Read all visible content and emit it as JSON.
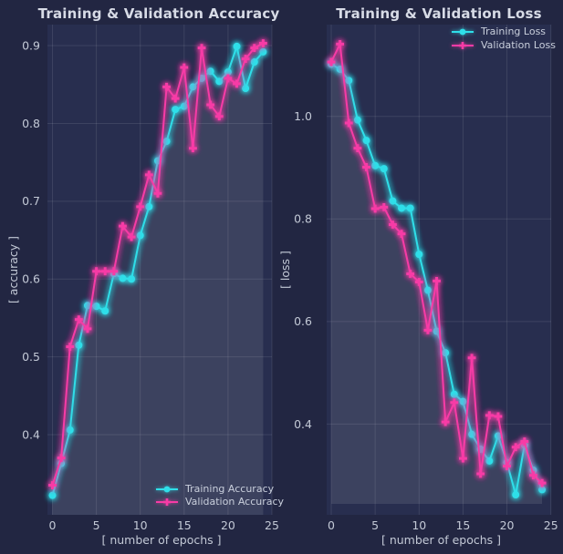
{
  "figure": {
    "background": "#222642",
    "plot_background": "#282e4f",
    "grid_color": "rgba(255,255,255,0.10)",
    "area_fill_color": "#ffffff",
    "area_fill_opacity": 0.05,
    "title_color": "#d7dbe6",
    "tick_color": "#c3c9d6"
  },
  "colors": {
    "training": "#2fdfe9",
    "validation": "#f73ba6"
  },
  "chart_data": [
    {
      "id": "accuracy",
      "type": "line",
      "title": "Training & Validation Accuracy",
      "xlabel": "[ number of epochs ]",
      "ylabel": "[ accuracy ]",
      "x": [
        0,
        1,
        2,
        3,
        4,
        5,
        6,
        7,
        8,
        9,
        10,
        11,
        12,
        13,
        14,
        15,
        16,
        17,
        18,
        19,
        20,
        21,
        22,
        23,
        24
      ],
      "series": [
        {
          "name": "Training Accuracy",
          "color": "#2fdfe9",
          "marker": "circle",
          "values": [
            0.322,
            0.363,
            0.406,
            0.515,
            0.566,
            0.565,
            0.559,
            0.607,
            0.601,
            0.6,
            0.656,
            0.693,
            0.752,
            0.777,
            0.818,
            0.822,
            0.847,
            0.858,
            0.867,
            0.854,
            0.866,
            0.899,
            0.845,
            0.879,
            0.892
          ]
        },
        {
          "name": "Validation Accuracy",
          "color": "#f73ba6",
          "marker": "plus",
          "values": [
            0.335,
            0.37,
            0.513,
            0.548,
            0.536,
            0.61,
            0.61,
            0.61,
            0.668,
            0.654,
            0.693,
            0.734,
            0.71,
            0.847,
            0.832,
            0.872,
            0.768,
            0.897,
            0.824,
            0.809,
            0.858,
            0.851,
            0.883,
            0.897,
            0.903
          ]
        }
      ],
      "xticks": [
        0,
        5,
        10,
        15,
        20,
        25
      ],
      "yticks": [
        0.4,
        0.5,
        0.6,
        0.7,
        0.8,
        0.9
      ],
      "xlim": [
        -0.57,
        25.0
      ],
      "ylim": [
        0.297,
        0.927
      ],
      "grid": true,
      "legend_position": "lower right"
    },
    {
      "id": "loss",
      "type": "line",
      "title": "Training & Validation Loss",
      "xlabel": "[ number of epochs ]",
      "ylabel": "[ loss ]",
      "x": [
        0,
        1,
        2,
        3,
        4,
        5,
        6,
        7,
        8,
        9,
        10,
        11,
        12,
        13,
        14,
        15,
        16,
        17,
        18,
        19,
        20,
        21,
        22,
        23,
        24
      ],
      "series": [
        {
          "name": "Training Loss",
          "color": "#2fdfe9",
          "marker": "circle",
          "values": [
            1.102,
            1.092,
            1.07,
            0.993,
            0.953,
            0.904,
            0.898,
            0.835,
            0.821,
            0.821,
            0.731,
            0.661,
            0.581,
            0.539,
            0.458,
            0.444,
            0.38,
            0.351,
            0.328,
            0.377,
            0.325,
            0.262,
            0.359,
            0.31,
            0.272
          ]
        },
        {
          "name": "Validation Loss",
          "color": "#f73ba6",
          "marker": "plus",
          "values": [
            1.106,
            1.141,
            0.987,
            0.938,
            0.901,
            0.82,
            0.823,
            0.789,
            0.771,
            0.693,
            0.677,
            0.583,
            0.679,
            0.404,
            0.442,
            0.333,
            0.529,
            0.303,
            0.417,
            0.415,
            0.318,
            0.355,
            0.366,
            0.3,
            0.285
          ]
        }
      ],
      "xticks": [
        0,
        5,
        10,
        15,
        20,
        25
      ],
      "yticks": [
        0.4,
        0.6,
        0.8,
        1.0
      ],
      "xlim": [
        -0.52,
        25.03
      ],
      "ylim": [
        0.223,
        1.179
      ],
      "grid": true,
      "legend_position": "upper right"
    }
  ]
}
